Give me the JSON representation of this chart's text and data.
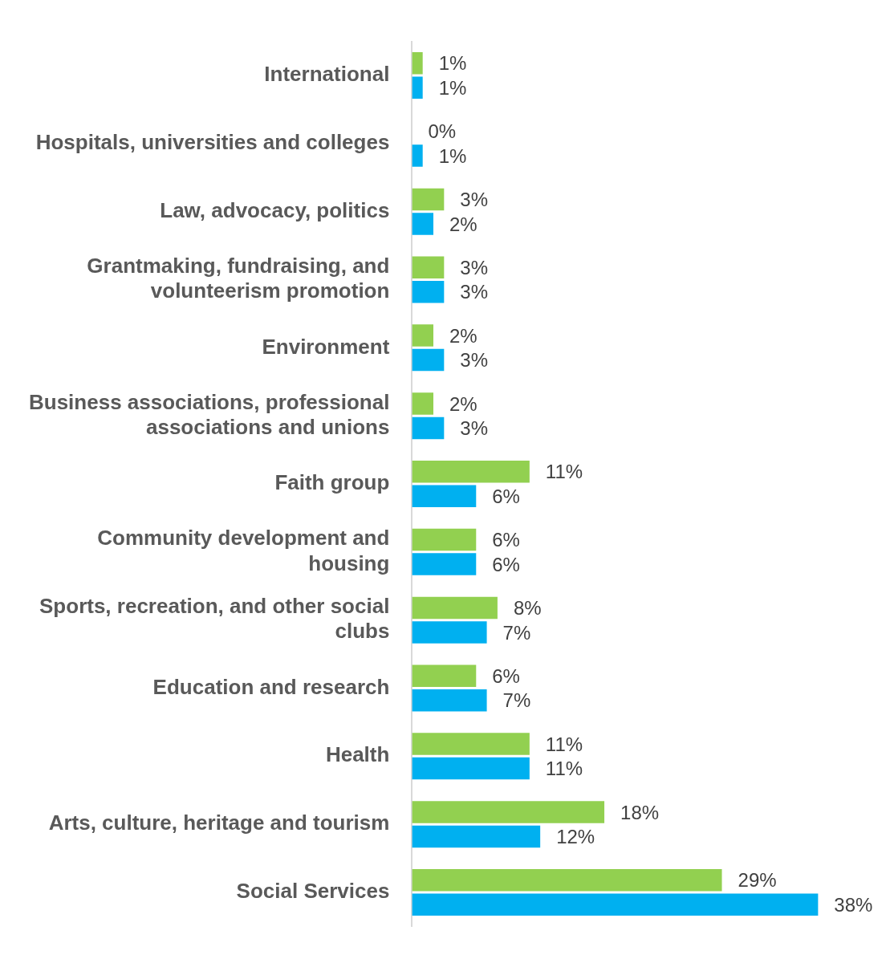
{
  "chart_data": {
    "type": "bar",
    "orientation": "horizontal",
    "categories": [
      "International",
      "Hospitals, universities and colleges",
      "Law, advocacy, politics",
      "Grantmaking, fundraising, and volunteerism promotion",
      "Environment",
      "Business associations, professional associations and unions",
      "Faith group",
      "Community development and housing",
      "Sports, recreation, and other social clubs",
      "Education and research",
      "Health",
      "Arts, culture, heritage and tourism",
      "Social Services"
    ],
    "series": [
      {
        "color": "#92d050",
        "values": [
          1,
          0,
          3,
          3,
          2,
          2,
          11,
          6,
          8,
          6,
          11,
          18,
          29
        ],
        "value_labels": [
          "1%",
          "0%",
          "3%",
          "3%",
          "2%",
          "2%",
          "11%",
          "6%",
          "8%",
          "6%",
          "11%",
          "18%",
          "29%"
        ]
      },
      {
        "color": "#00b0f0",
        "values": [
          1,
          1,
          2,
          3,
          3,
          3,
          6,
          6,
          7,
          7,
          11,
          12,
          38
        ],
        "value_labels": [
          "1%",
          "1%",
          "2%",
          "3%",
          "3%",
          "3%",
          "6%",
          "6%",
          "7%",
          "7%",
          "11%",
          "12%",
          "38%"
        ]
      }
    ]
  }
}
